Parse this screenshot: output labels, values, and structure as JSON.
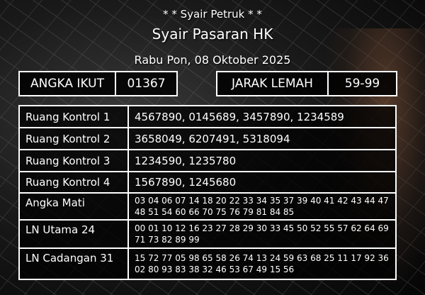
{
  "header": {
    "subtitle": "* * Syair Petruk * *",
    "title": "Syair Pasaran HK",
    "date": "Rabu Pon, 08 Oktober 2025"
  },
  "angka_ikut": {
    "label": "ANGKA IKUT",
    "value": "01367"
  },
  "jarak_lemah": {
    "label": "JARAK LEMAH",
    "value": "59-99"
  },
  "rows": [
    {
      "label": "Ruang Kontrol 1",
      "value": "4567890, 0145689, 3457890, 1234589"
    },
    {
      "label": "Ruang Kontrol 2",
      "value": "3658049, 6207491, 5318094"
    },
    {
      "label": "Ruang Kontrol 3",
      "value": "1234590, 1235780"
    },
    {
      "label": "Ruang Kontrol 4",
      "value": "1567890, 1245680"
    },
    {
      "label": "Angka Mati",
      "value": "03 04 06 07 14 18 20 22 33 34 35 37 39 40 41 42 43 44 47 48 51 54 60 66 70 75 76 79 81 84 85"
    },
    {
      "label": "LN Utama 24",
      "value": "00 01 10 12 16 23 27 28 29 30 33 45 50 52 55 57 62 64 69 71 73 82 89 99"
    },
    {
      "label": "LN Cadangan 31",
      "value": "15 72 77 05 98 65 58 26 74 13 24 59 63 68 25 11 17 92 36 02 80 93 83 38 32 46 53 67 49 15 56"
    }
  ]
}
